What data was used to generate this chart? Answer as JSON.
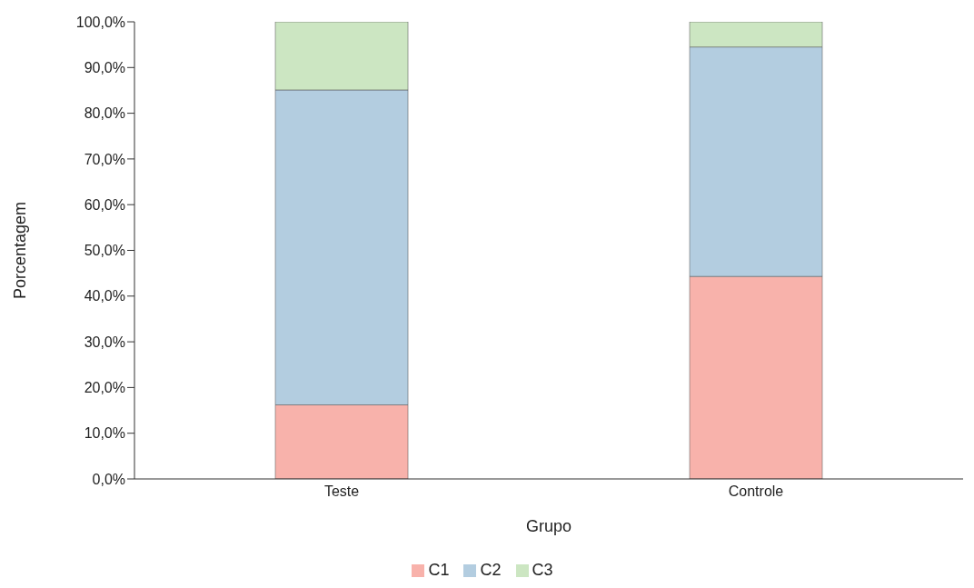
{
  "chart_data": {
    "type": "bar",
    "stacked": true,
    "xlabel": "Grupo",
    "ylabel": "Porcentagem",
    "categories": [
      "Teste",
      "Controle"
    ],
    "series": [
      {
        "name": "C1",
        "color": "#f8b2ab",
        "values": [
          16.2,
          44.3
        ]
      },
      {
        "name": "C2",
        "color": "#b3cde0",
        "values": [
          68.9,
          50.2
        ]
      },
      {
        "name": "C3",
        "color": "#cce6c2",
        "values": [
          14.9,
          5.5
        ]
      }
    ],
    "ylim": [
      0,
      100
    ],
    "yticks": [
      {
        "value": 0,
        "label": "0,0%"
      },
      {
        "value": 10,
        "label": "10,0%"
      },
      {
        "value": 20,
        "label": "20,0%"
      },
      {
        "value": 30,
        "label": "30,0%"
      },
      {
        "value": 40,
        "label": "40,0%"
      },
      {
        "value": 50,
        "label": "50,0%"
      },
      {
        "value": 60,
        "label": "60,0%"
      },
      {
        "value": 70,
        "label": "70,0%"
      },
      {
        "value": 80,
        "label": "80,0%"
      },
      {
        "value": 90,
        "label": "90,0%"
      },
      {
        "value": 100,
        "label": "100,0%"
      }
    ],
    "grid": false,
    "legend": "bottom"
  }
}
